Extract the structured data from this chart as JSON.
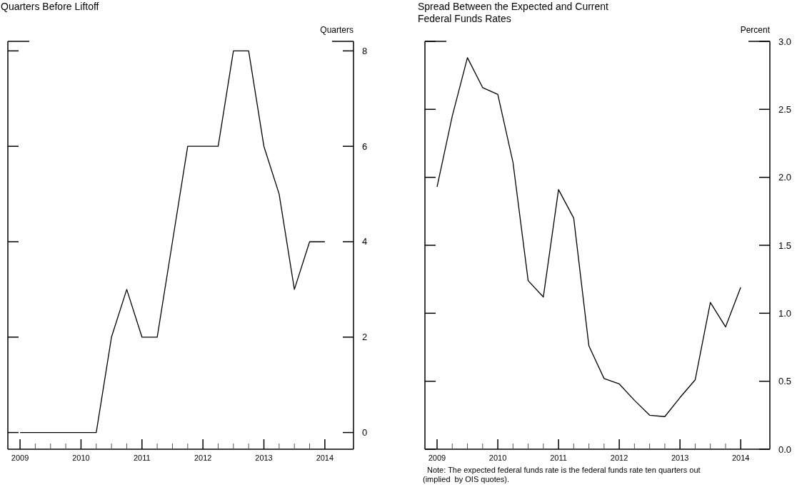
{
  "chart_data": [
    {
      "type": "line",
      "title": "Quarters Before Liftoff",
      "ylabel": "Quarters",
      "x": [
        2009,
        2009.25,
        2009.5,
        2009.75,
        2010,
        2010.25,
        2010.5,
        2010.75,
        2011,
        2011.25,
        2011.5,
        2011.75,
        2012,
        2012.25,
        2012.5,
        2012.75,
        2013,
        2013.25,
        2013.5,
        2013.75,
        2014
      ],
      "series": [
        {
          "color": "#000000",
          "values": [
            0,
            0,
            0,
            0,
            0,
            0,
            2,
            3,
            2,
            2,
            4,
            6,
            6,
            6,
            8,
            8,
            6,
            5,
            3,
            4,
            4
          ]
        }
      ],
      "xlim": [
        2008.8,
        2014.47
      ],
      "ylim": [
        -0.35,
        8.2
      ],
      "xticks": [
        2009,
        {
          "value": 2009.25,
          "label": null
        },
        {
          "value": 2009.5,
          "label": null
        },
        {
          "value": 2009.75,
          "label": null
        },
        2010,
        {
          "value": 2010.25,
          "label": null
        },
        {
          "value": 2010.5,
          "label": null
        },
        {
          "value": 2010.75,
          "label": null
        },
        2011,
        {
          "value": 2011.25,
          "label": null
        },
        {
          "value": 2011.5,
          "label": null
        },
        {
          "value": 2011.75,
          "label": null
        },
        2012,
        {
          "value": 2012.25,
          "label": null
        },
        {
          "value": 2012.5,
          "label": null
        },
        {
          "value": 2012.75,
          "label": null
        },
        2013,
        {
          "value": 2013.25,
          "label": null
        },
        {
          "value": 2013.5,
          "label": null
        },
        {
          "value": 2013.75,
          "label": null
        },
        2014
      ],
      "yticks": [
        0,
        2,
        4,
        6,
        8
      ],
      "grid": false
    },
    {
      "type": "line",
      "title": "Spread Between the Expected and Current Federal Funds Rates",
      "ylabel": "Percent",
      "x": [
        2009,
        2009.25,
        2009.5,
        2009.75,
        2010,
        2010.25,
        2010.5,
        2010.75,
        2011,
        2011.25,
        2011.5,
        2011.75,
        2012,
        2012.25,
        2012.5,
        2012.75,
        2013,
        2013.25,
        2013.5,
        2013.75,
        2014
      ],
      "series": [
        {
          "color": "#000000",
          "values": [
            1.93,
            2.45,
            2.88,
            2.66,
            2.61,
            2.11,
            1.24,
            1.12,
            1.91,
            1.7,
            0.76,
            0.52,
            0.48,
            0.36,
            0.25,
            0.24,
            0.38,
            0.51,
            1.08,
            0.9,
            1.19
          ]
        }
      ],
      "xlim": [
        2008.8,
        2014.48
      ],
      "ylim": [
        0,
        3
      ],
      "xticks": [
        2009,
        {
          "value": 2009.25,
          "label": null
        },
        {
          "value": 2009.5,
          "label": null
        },
        {
          "value": 2009.75,
          "label": null
        },
        2010,
        {
          "value": 2010.25,
          "label": null
        },
        {
          "value": 2010.5,
          "label": null
        },
        {
          "value": 2010.75,
          "label": null
        },
        2011,
        {
          "value": 2011.25,
          "label": null
        },
        {
          "value": 2011.5,
          "label": null
        },
        {
          "value": 2011.75,
          "label": null
        },
        2012,
        {
          "value": 2012.25,
          "label": null
        },
        {
          "value": 2012.5,
          "label": null
        },
        {
          "value": 2012.75,
          "label": null
        },
        2013,
        {
          "value": 2013.25,
          "label": null
        },
        {
          "value": 2013.5,
          "label": null
        },
        {
          "value": 2013.75,
          "label": null
        },
        2014
      ],
      "yticks": [
        {
          "value": 0,
          "label": "0.0"
        },
        {
          "value": 0.5,
          "label": "0.5"
        },
        {
          "value": 1,
          "label": "1.0"
        },
        {
          "value": 1.5,
          "label": "1.5"
        },
        {
          "value": 2,
          "label": "2.0"
        },
        {
          "value": 2.5,
          "label": "2.5"
        },
        {
          "value": 3,
          "label": "3.0"
        }
      ],
      "annotations": [
        "Note: The expected federal funds rate is the federal funds rate ten quarters out (implied  by OIS quotes)."
      ],
      "grid": false
    }
  ]
}
